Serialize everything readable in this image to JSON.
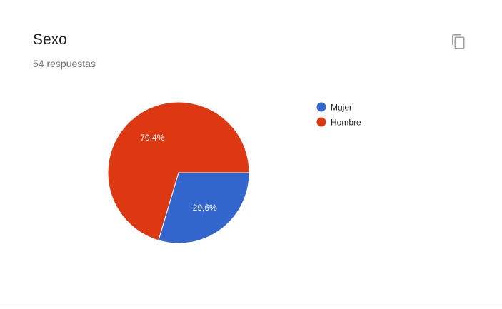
{
  "question": {
    "title": "Sexo",
    "response_count": "54 respuestas"
  },
  "actions": {
    "copy_icon": "copy-icon"
  },
  "chart_data": {
    "type": "pie",
    "title": "Sexo",
    "categories": [
      "Mujer",
      "Hombre"
    ],
    "values": [
      29.6,
      70.4
    ],
    "labels": [
      "29,6%",
      "70,4%"
    ],
    "colors": [
      "#3366cc",
      "#dc3912"
    ],
    "start_angle_deg": 90,
    "legend_position": "right"
  }
}
